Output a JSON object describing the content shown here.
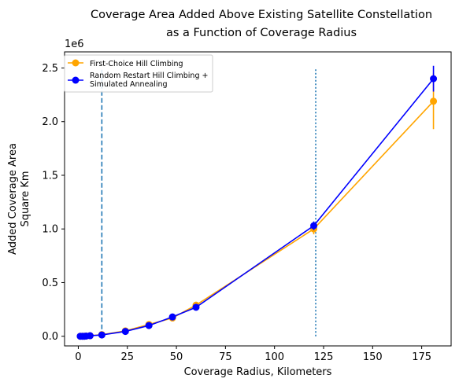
{
  "chart_data": {
    "type": "line",
    "title_lines": [
      "Coverage Area Added Above Existing Satellite Constellation",
      "as a Function of Coverage Radius"
    ],
    "xlabel": "Coverage Radius, Kilometers",
    "ylabel_lines": [
      "Added Coverage Area",
      "Square Km"
    ],
    "y_offset_label": "1e6",
    "xlim": [
      -7,
      190
    ],
    "ylim": [
      -0.09,
      2.65
    ],
    "xticks": [
      0,
      25,
      50,
      75,
      100,
      125,
      150,
      175
    ],
    "yticks": [
      0.0,
      0.5,
      1.0,
      1.5,
      2.0,
      2.5
    ],
    "ytick_labels": [
      "0.0",
      "0.5",
      "1.0",
      "1.5",
      "2.0",
      "2.5"
    ],
    "y_unit_scale": "1e6",
    "vlines": [
      {
        "x": 12,
        "y_range": [
          0,
          2.5
        ],
        "style": "dashed",
        "color": "#1f77b4"
      },
      {
        "x": 121,
        "y_range": [
          0,
          2.5
        ],
        "style": "dotted",
        "color": "#1f77b4"
      }
    ],
    "legend_position": "upper-left",
    "series": [
      {
        "name_lines": [
          "First-Choice Hill Climbing"
        ],
        "color": "#ffa500",
        "x": [
          1,
          2,
          3,
          4,
          6,
          12,
          24,
          36,
          48,
          60,
          120,
          181
        ],
        "y": [
          0.0,
          0.0,
          0.0,
          0.002,
          0.005,
          0.015,
          0.05,
          0.11,
          0.17,
          0.29,
          1.0,
          2.19
        ],
        "err": [
          0,
          0,
          0,
          0,
          0,
          0,
          0,
          0,
          0,
          0,
          0.05,
          0.26
        ]
      },
      {
        "name_lines": [
          "Random Restart Hill Climbing +",
          "Simulated Annealing"
        ],
        "color": "#0000ff",
        "x": [
          1,
          2,
          3,
          4,
          6,
          12,
          24,
          36,
          48,
          60,
          120,
          181
        ],
        "y": [
          0.0,
          0.0,
          0.0,
          0.002,
          0.005,
          0.012,
          0.045,
          0.1,
          0.18,
          0.27,
          1.03,
          2.4
        ],
        "err": [
          0,
          0,
          0,
          0,
          0,
          0,
          0,
          0,
          0,
          0,
          0.04,
          0.12
        ]
      }
    ]
  }
}
